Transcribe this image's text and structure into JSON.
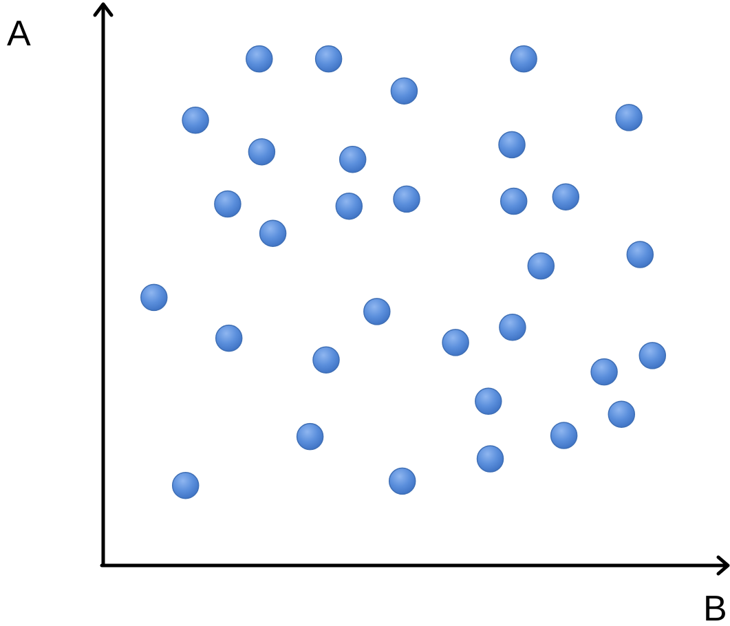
{
  "chart_data": {
    "type": "scatter",
    "title": "",
    "xlabel": "B",
    "ylabel": "A",
    "grid": false,
    "legend": "none",
    "ticks": false,
    "xlim": [
      0,
      100
    ],
    "ylim": [
      0,
      100
    ],
    "marker_color": "#5b8fdc",
    "marker_edge_color": "#3f6fb5",
    "axis_color": "#000000",
    "points": [
      {
        "x": 25.2,
        "y": 91.7
      },
      {
        "x": 36.4,
        "y": 91.7
      },
      {
        "x": 67.9,
        "y": 91.7
      },
      {
        "x": 48.6,
        "y": 85.8
      },
      {
        "x": 14.9,
        "y": 80.4
      },
      {
        "x": 84.9,
        "y": 80.9
      },
      {
        "x": 66.0,
        "y": 75.9
      },
      {
        "x": 25.6,
        "y": 74.6
      },
      {
        "x": 40.3,
        "y": 73.2
      },
      {
        "x": 49.0,
        "y": 65.9
      },
      {
        "x": 74.7,
        "y": 66.3
      },
      {
        "x": 20.1,
        "y": 65.0
      },
      {
        "x": 39.7,
        "y": 64.6
      },
      {
        "x": 66.3,
        "y": 65.5
      },
      {
        "x": 27.4,
        "y": 59.6
      },
      {
        "x": 86.7,
        "y": 55.7
      },
      {
        "x": 70.7,
        "y": 53.6
      },
      {
        "x": 8.2,
        "y": 47.8
      },
      {
        "x": 44.2,
        "y": 45.2
      },
      {
        "x": 66.1,
        "y": 42.3
      },
      {
        "x": 20.3,
        "y": 40.3
      },
      {
        "x": 56.9,
        "y": 39.5
      },
      {
        "x": 36.0,
        "y": 36.3
      },
      {
        "x": 88.7,
        "y": 37.1
      },
      {
        "x": 80.9,
        "y": 34.1
      },
      {
        "x": 62.2,
        "y": 28.7
      },
      {
        "x": 83.7,
        "y": 26.3
      },
      {
        "x": 33.4,
        "y": 22.2
      },
      {
        "x": 74.4,
        "y": 22.4
      },
      {
        "x": 62.5,
        "y": 18.1
      },
      {
        "x": 48.3,
        "y": 14.0
      },
      {
        "x": 13.3,
        "y": 13.2
      }
    ]
  }
}
